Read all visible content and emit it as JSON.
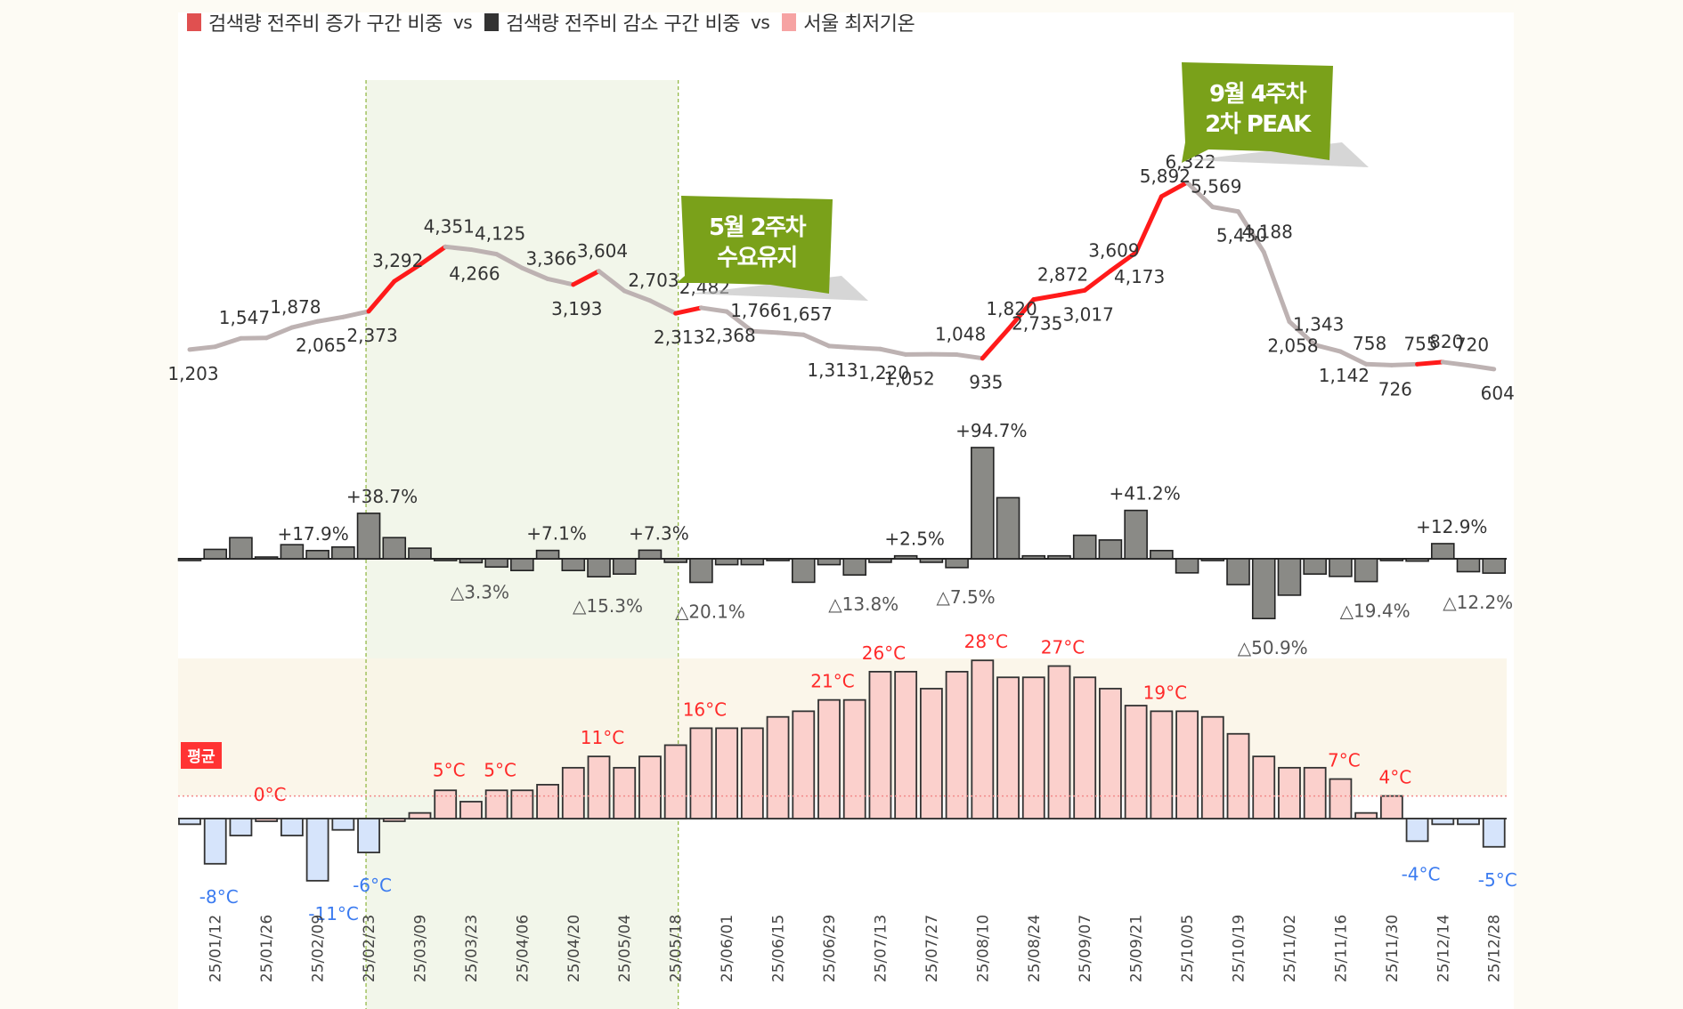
{
  "legend": {
    "items": [
      {
        "label": "검색량 전주비 증가 구간 비중",
        "color": "#e05050"
      },
      {
        "label": "검색량 전주비 감소 구간 비중",
        "color": "#333333"
      },
      {
        "label": "서울 최저기온",
        "color": "#f6a3a3"
      }
    ],
    "separator": "vs"
  },
  "callouts": [
    {
      "line1": "5월 2주차",
      "line2": "수요유지"
    },
    {
      "line1": "9월 4주차",
      "line2": "2차 PEAK"
    }
  ],
  "average_badge": "평균",
  "colors": {
    "line_up": "#ff1a1a",
    "line_flat": "#bdb2b2",
    "bar_change": "#8a8a86",
    "temp_warm": "#fbd0cc",
    "temp_cold": "#d6e4fb",
    "label_warm": "#ff2a2a",
    "label_cold": "#3b7bf0",
    "highlight_fill": "#f2f6ea",
    "highlight_border": "#8db43c",
    "callout_bg": "#7aa11a",
    "warm_band": "#faf4e6",
    "badge_bg": "#ff3333"
  },
  "chart_data": [
    {
      "type": "line",
      "title": "검색량",
      "x_tick_labels": [
        "25/01/12",
        "25/01/26",
        "25/02/09",
        "25/02/23",
        "25/03/09",
        "25/03/23",
        "25/04/06",
        "25/04/20",
        "25/05/04",
        "25/05/18",
        "25/06/01",
        "25/06/15",
        "25/06/29",
        "25/07/13",
        "25/07/27",
        "25/08/10",
        "25/08/24",
        "25/09/07",
        "25/09/21",
        "25/10/05",
        "25/10/19",
        "25/11/02",
        "25/11/16",
        "25/11/30",
        "25/12/14",
        "25/12/28"
      ],
      "x": [
        "25/01/05",
        "25/01/12",
        "25/01/19",
        "25/01/26",
        "25/02/02",
        "25/02/09",
        "25/02/16",
        "25/02/23",
        "25/03/02",
        "25/03/09",
        "25/03/16",
        "25/03/23",
        "25/03/30",
        "25/04/06",
        "25/04/13",
        "25/04/20",
        "25/04/27",
        "25/05/04",
        "25/05/11",
        "25/05/18",
        "25/05/25",
        "25/06/01",
        "25/06/08",
        "25/06/15",
        "25/06/22",
        "25/06/29",
        "25/07/06",
        "25/07/13",
        "25/07/20",
        "25/07/27",
        "25/08/03",
        "25/08/10",
        "25/08/17",
        "25/08/24",
        "25/08/31",
        "25/09/07",
        "25/09/14",
        "25/09/21",
        "25/09/28",
        "25/10/05",
        "25/10/12",
        "25/10/19",
        "25/10/26",
        "25/11/02",
        "25/11/09",
        "25/11/16",
        "25/11/23",
        "25/11/30",
        "25/12/07",
        "25/12/14",
        "25/12/21",
        "25/12/28"
      ],
      "values": [
        1203,
        1290,
        1547,
        1560,
        1878,
        2065,
        2200,
        2373,
        3292,
        3800,
        4351,
        4266,
        4125,
        3700,
        3366,
        3193,
        3604,
        3000,
        2703,
        2313,
        2482,
        2368,
        1766,
        1720,
        1657,
        1313,
        1260,
        1220,
        1052,
        1060,
        1048,
        935,
        1820,
        2735,
        2872,
        3017,
        3609,
        4173,
        5892,
        6322,
        5569,
        5430,
        4188,
        2058,
        1343,
        1142,
        758,
        726,
        755,
        820,
        720,
        604
      ],
      "labeled_points": [
        "1,203",
        "1,547",
        "1,878",
        "2,065",
        "2,373",
        "3,292",
        "4,351",
        "4,266",
        "4,125",
        "3,366",
        "3,193",
        "3,604",
        "2,703",
        "2,313",
        "2,482",
        "2,368",
        "1,766",
        "1,657",
        "1,313",
        "1,220",
        "1,052",
        "1,048",
        "935",
        "1,820",
        "2,735",
        "2,872",
        "3,017",
        "3,609",
        "4,173",
        "5,892",
        "6,322",
        "5,569",
        "5,430",
        "4,188",
        "2,058",
        "1,343",
        "1,142",
        "758",
        "726",
        "755",
        "820",
        "720",
        "604"
      ],
      "highlight_segments": "red where week-over-week increasing, grey otherwise",
      "highlight_range": [
        "25/02/23",
        "25/05/18"
      ]
    },
    {
      "type": "bar",
      "title": "검색량 전주비",
      "unit": "%",
      "values": [
        -0.5,
        8,
        18,
        1.5,
        12,
        7,
        10,
        38.7,
        18,
        9,
        -0.8,
        -3.3,
        -7,
        -10,
        7.1,
        -10,
        -15.3,
        -13,
        7.3,
        -3,
        -20.1,
        -5,
        -5,
        -1,
        -20,
        -5,
        -13.8,
        -3,
        2.5,
        -3,
        -7.5,
        94.7,
        52,
        2.5,
        2.5,
        20,
        16,
        41.2,
        7,
        -12,
        -0.5,
        -22,
        -50.9,
        -31,
        -13,
        -15,
        -19.4,
        -0.5,
        -2,
        12.9,
        -11,
        -12.2
      ],
      "annotations": [
        "+17.9%",
        "+38.7%",
        "△3.3%",
        "+7.1%",
        "△15.3%",
        "+7.3%",
        "△20.1%",
        "△13.8%",
        "+2.5%",
        "△7.5%",
        "+94.7%",
        "+41.2%",
        "△50.9%",
        "△19.4%",
        "+12.9%",
        "△12.2%"
      ]
    },
    {
      "type": "bar",
      "title": "서울 최저기온",
      "unit": "°C",
      "average_line": 4,
      "values": [
        -1,
        -8,
        -3,
        0,
        -3,
        -11,
        -2,
        -6,
        0,
        1,
        5,
        3,
        5,
        5,
        6,
        9,
        11,
        9,
        11,
        13,
        16,
        16,
        16,
        18,
        19,
        21,
        21,
        26,
        26,
        23,
        26,
        28,
        25,
        25,
        27,
        25,
        23,
        20,
        19,
        19,
        18,
        15,
        11,
        9,
        9,
        7,
        1,
        4,
        -4,
        -1,
        -1,
        -5
      ],
      "labels": [
        "-8°C",
        "0°C",
        "-11°C",
        "-6°C",
        "5°C",
        "5°C",
        "11°C",
        "16°C",
        "21°C",
        "26°C",
        "28°C",
        "27°C",
        "19°C",
        "7°C",
        "4°C",
        "-4°C",
        "-5°C"
      ]
    }
  ]
}
